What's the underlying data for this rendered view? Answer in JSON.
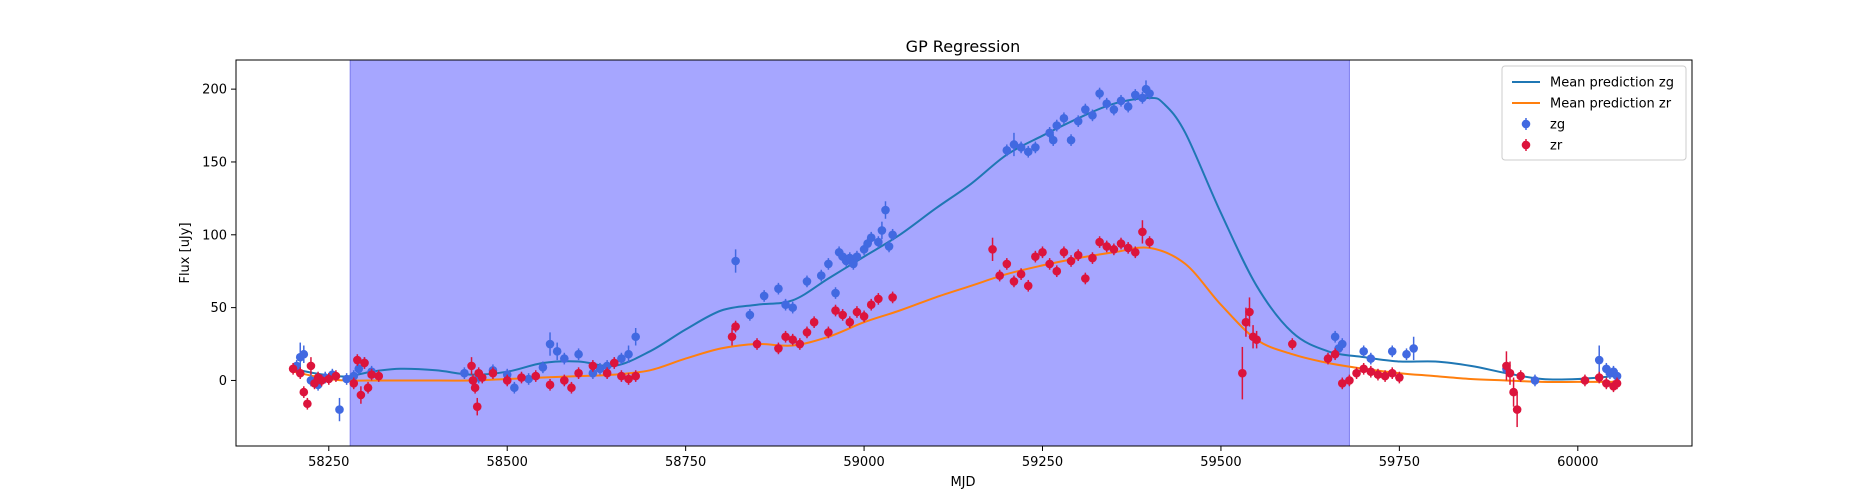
{
  "chart_data": {
    "type": "scatter",
    "title": "GP Regression",
    "xlabel": "MJD",
    "ylabel": "Flux [uJy]",
    "xlim": [
      58120,
      60160
    ],
    "ylim": [
      -45,
      220
    ],
    "xticks": [
      58250,
      58500,
      58750,
      59000,
      59250,
      59500,
      59750,
      60000
    ],
    "yticks": [
      0,
      50,
      100,
      150,
      200
    ],
    "grid": false,
    "legend_position": "top-right",
    "highlight_span": {
      "x_start": 58280,
      "x_end": 59680,
      "color": "#a6a6ff"
    },
    "series": [
      {
        "name": "Mean prediction zg",
        "kind": "line",
        "color": "#1f77b4",
        "x": [
          58200,
          58230,
          58260,
          58280,
          58310,
          58350,
          58400,
          58450,
          58500,
          58550,
          58600,
          58650,
          58700,
          58750,
          58800,
          58850,
          58900,
          58950,
          59000,
          59050,
          59100,
          59150,
          59200,
          59250,
          59300,
          59350,
          59400,
          59420,
          59450,
          59500,
          59550,
          59600,
          59650,
          59700,
          59750,
          59800,
          59850,
          59900,
          59950,
          60000,
          60050
        ],
        "y": [
          8,
          5,
          3,
          3,
          6,
          8,
          7,
          4,
          6,
          12,
          13,
          10,
          20,
          35,
          48,
          52,
          55,
          70,
          85,
          100,
          118,
          135,
          155,
          168,
          180,
          190,
          194,
          190,
          170,
          115,
          65,
          33,
          20,
          16,
          13,
          13,
          10,
          5,
          1,
          1,
          3
        ]
      },
      {
        "name": "Mean prediction zr",
        "kind": "line",
        "color": "#ff7f0e",
        "x": [
          58200,
          58250,
          58280,
          58320,
          58380,
          58450,
          58500,
          58550,
          58600,
          58650,
          58700,
          58750,
          58800,
          58850,
          58900,
          58950,
          59000,
          59050,
          59100,
          59150,
          59200,
          59250,
          59300,
          59350,
          59400,
          59450,
          59500,
          59550,
          59600,
          59650,
          59700,
          59750,
          59800,
          59850,
          59900,
          59950,
          60000,
          60050
        ],
        "y": [
          6,
          1,
          0,
          0,
          0,
          0,
          1,
          2,
          3,
          4,
          7,
          15,
          22,
          25,
          24,
          30,
          40,
          48,
          57,
          65,
          73,
          79,
          84,
          88,
          91,
          80,
          52,
          28,
          18,
          12,
          8,
          5,
          3,
          1,
          0,
          -1,
          -1,
          -1
        ]
      },
      {
        "name": "zg",
        "kind": "errorbar",
        "color": "#4169e1",
        "x": [
          58205,
          58210,
          58215,
          58225,
          58235,
          58245,
          58255,
          58265,
          58275,
          58285,
          58292,
          58300,
          58310,
          58440,
          58460,
          58480,
          58500,
          58510,
          58530,
          58550,
          58560,
          58570,
          58580,
          58600,
          58620,
          58630,
          58640,
          58650,
          58660,
          58670,
          58680,
          58820,
          58840,
          58860,
          58880,
          58890,
          58900,
          58920,
          58940,
          58950,
          58960,
          58965,
          58970,
          58975,
          58980,
          58985,
          58990,
          59000,
          59005,
          59010,
          59020,
          59025,
          59030,
          59035,
          59040,
          59200,
          59210,
          59220,
          59230,
          59240,
          59260,
          59265,
          59270,
          59280,
          59290,
          59300,
          59310,
          59320,
          59330,
          59340,
          59350,
          59360,
          59370,
          59380,
          59390,
          59395,
          59400,
          59660,
          59665,
          59670,
          59700,
          59710,
          59740,
          59760,
          59770,
          59900,
          59940,
          60030,
          60040,
          60045,
          60050,
          60055
        ],
        "y": [
          10,
          16,
          18,
          0,
          -3,
          2,
          4,
          -20,
          1,
          3,
          8,
          12,
          6,
          5,
          2,
          7,
          4,
          -5,
          1,
          9,
          25,
          20,
          15,
          18,
          5,
          8,
          10,
          12,
          15,
          18,
          30,
          82,
          45,
          58,
          63,
          52,
          50,
          68,
          72,
          80,
          60,
          88,
          85,
          82,
          84,
          80,
          85,
          90,
          94,
          98,
          95,
          103,
          117,
          92,
          100,
          158,
          162,
          160,
          157,
          160,
          170,
          165,
          175,
          180,
          165,
          178,
          186,
          182,
          197,
          190,
          186,
          192,
          188,
          196,
          194,
          200,
          197,
          30,
          22,
          25,
          20,
          15,
          20,
          18,
          22,
          8,
          0,
          14,
          8,
          5,
          6,
          3
        ],
        "err": [
          4,
          10,
          6,
          4,
          4,
          4,
          4,
          8,
          4,
          4,
          4,
          4,
          4,
          4,
          4,
          4,
          4,
          4,
          4,
          4,
          8,
          6,
          4,
          4,
          4,
          4,
          4,
          4,
          4,
          6,
          6,
          8,
          4,
          4,
          4,
          4,
          4,
          4,
          4,
          4,
          4,
          4,
          4,
          4,
          4,
          4,
          4,
          4,
          4,
          4,
          4,
          6,
          6,
          4,
          4,
          4,
          8,
          4,
          4,
          4,
          4,
          4,
          4,
          4,
          4,
          4,
          4,
          4,
          4,
          4,
          4,
          4,
          4,
          4,
          4,
          6,
          4,
          4,
          4,
          4,
          4,
          4,
          4,
          4,
          8,
          4,
          4,
          10,
          4,
          4,
          4,
          4
        ]
      },
      {
        "name": "zr",
        "kind": "errorbar",
        "color": "#dc143c",
        "x": [
          58200,
          58210,
          58215,
          58220,
          58225,
          58230,
          58235,
          58240,
          58250,
          58260,
          58285,
          58290,
          58295,
          58300,
          58305,
          58310,
          58320,
          58450,
          58452,
          58455,
          58458,
          58460,
          58465,
          58480,
          58500,
          58520,
          58540,
          58560,
          58580,
          58590,
          58600,
          58620,
          58640,
          58650,
          58660,
          58670,
          58680,
          58815,
          58820,
          58850,
          58880,
          58890,
          58900,
          58910,
          58920,
          58930,
          58950,
          58960,
          58970,
          58980,
          58990,
          59000,
          59010,
          59020,
          59040,
          59180,
          59190,
          59200,
          59210,
          59220,
          59230,
          59240,
          59250,
          59260,
          59270,
          59280,
          59290,
          59300,
          59310,
          59320,
          59330,
          59340,
          59350,
          59360,
          59370,
          59380,
          59390,
          59400,
          59530,
          59535,
          59540,
          59545,
          59550,
          59600,
          59650,
          59660,
          59670,
          59680,
          59690,
          59700,
          59710,
          59720,
          59730,
          59740,
          59750,
          59900,
          59905,
          59910,
          59915,
          59920,
          60010,
          60030,
          60040,
          60050,
          60055
        ],
        "y": [
          8,
          5,
          -8,
          -16,
          10,
          -2,
          2,
          0,
          1,
          3,
          -2,
          14,
          -10,
          12,
          -5,
          4,
          3,
          10,
          0,
          -5,
          -18,
          5,
          2,
          5,
          0,
          2,
          3,
          -3,
          0,
          -5,
          5,
          10,
          5,
          12,
          3,
          1,
          3,
          30,
          37,
          25,
          22,
          30,
          28,
          25,
          33,
          40,
          33,
          48,
          45,
          40,
          47,
          44,
          52,
          56,
          57,
          90,
          72,
          80,
          68,
          73,
          65,
          85,
          88,
          80,
          75,
          88,
          82,
          86,
          70,
          84,
          95,
          92,
          90,
          94,
          91,
          88,
          102,
          95,
          5,
          40,
          47,
          30,
          28,
          25,
          15,
          18,
          -2,
          0,
          5,
          8,
          6,
          4,
          3,
          5,
          2,
          10,
          5,
          -8,
          -20,
          3,
          0,
          2,
          -2,
          -4,
          -2
        ],
        "err": [
          4,
          4,
          4,
          4,
          6,
          4,
          4,
          4,
          4,
          4,
          4,
          4,
          6,
          4,
          4,
          4,
          4,
          6,
          4,
          4,
          6,
          4,
          4,
          4,
          4,
          4,
          4,
          4,
          4,
          4,
          4,
          4,
          4,
          4,
          4,
          4,
          4,
          6,
          4,
          4,
          4,
          4,
          4,
          4,
          4,
          4,
          4,
          4,
          4,
          4,
          4,
          4,
          4,
          4,
          4,
          8,
          4,
          4,
          4,
          4,
          4,
          4,
          4,
          4,
          4,
          4,
          4,
          4,
          4,
          4,
          4,
          4,
          4,
          4,
          4,
          4,
          8,
          4,
          18,
          10,
          10,
          8,
          6,
          4,
          4,
          4,
          4,
          4,
          4,
          4,
          4,
          4,
          4,
          4,
          4,
          10,
          8,
          10,
          12,
          4,
          4,
          4,
          4,
          4,
          4
        ]
      }
    ]
  }
}
